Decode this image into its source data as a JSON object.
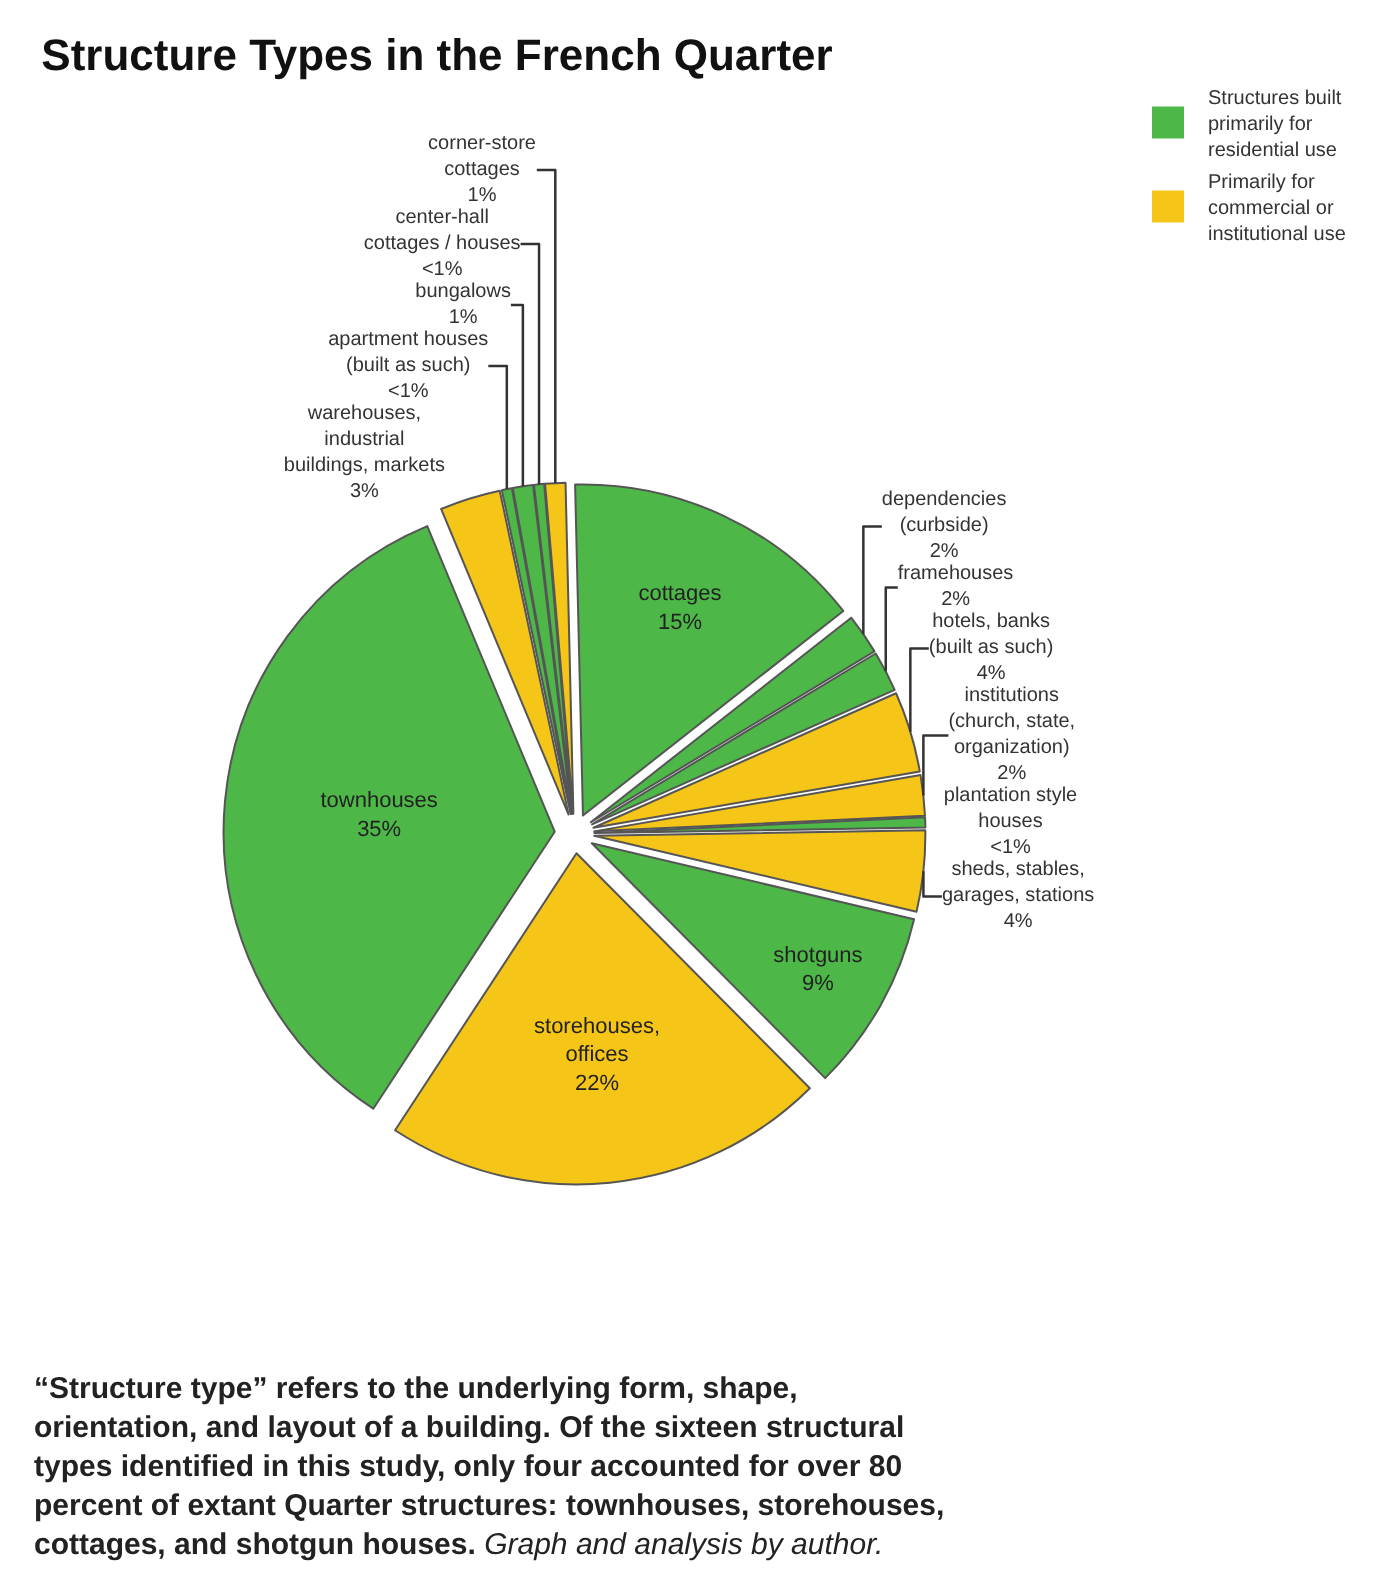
{
  "chart_data": {
    "type": "pie",
    "title": "Structure Types in the French Quarter",
    "categories": [
      "apartment houses (built as such)",
      "bungalows",
      "center-hall cottages / houses",
      "corner-store cottages",
      "cottages",
      "dependencies (curbside)",
      "framehouses",
      "hotels, banks (built as such)",
      "institutions (church, state, organization)",
      "plantation style houses",
      "sheds, stables, garages, stations",
      "shotguns",
      "storehouses, offices",
      "townhouses",
      "warehouses, industrial buildings, markets"
    ],
    "values": [
      0.5,
      1,
      0.5,
      1,
      15,
      2,
      2,
      4,
      2,
      0.5,
      4,
      9,
      22,
      35,
      3
    ],
    "value_labels": [
      "<1%",
      "1%",
      "<1%",
      "1%",
      "15%",
      "2%",
      "2%",
      "4%",
      "2%",
      "<1%",
      "4%",
      "9%",
      "22%",
      "35%",
      "3%"
    ],
    "colors": [
      "#4db848",
      "#4db848",
      "#4db848",
      "#f5c518",
      "#4db848",
      "#4db848",
      "#4db848",
      "#f5c518",
      "#f5c518",
      "#4db848",
      "#f5c518",
      "#4db848",
      "#f5c518",
      "#4db848",
      "#f5c518"
    ],
    "annotations": [
      "Structures built primarily for residential use",
      "Primarily for commercial or institutional use",
      "“Structure type” refers to the underlying form, shape, orientation, and layout of a building. Of the sixteen structural types identified in this study, only four accounted for over 80 percent of extant Quarter structures: townhouses, storehouses, cottages, and shotgun houses.",
      "Graph and analysis by author."
    ]
  }
}
